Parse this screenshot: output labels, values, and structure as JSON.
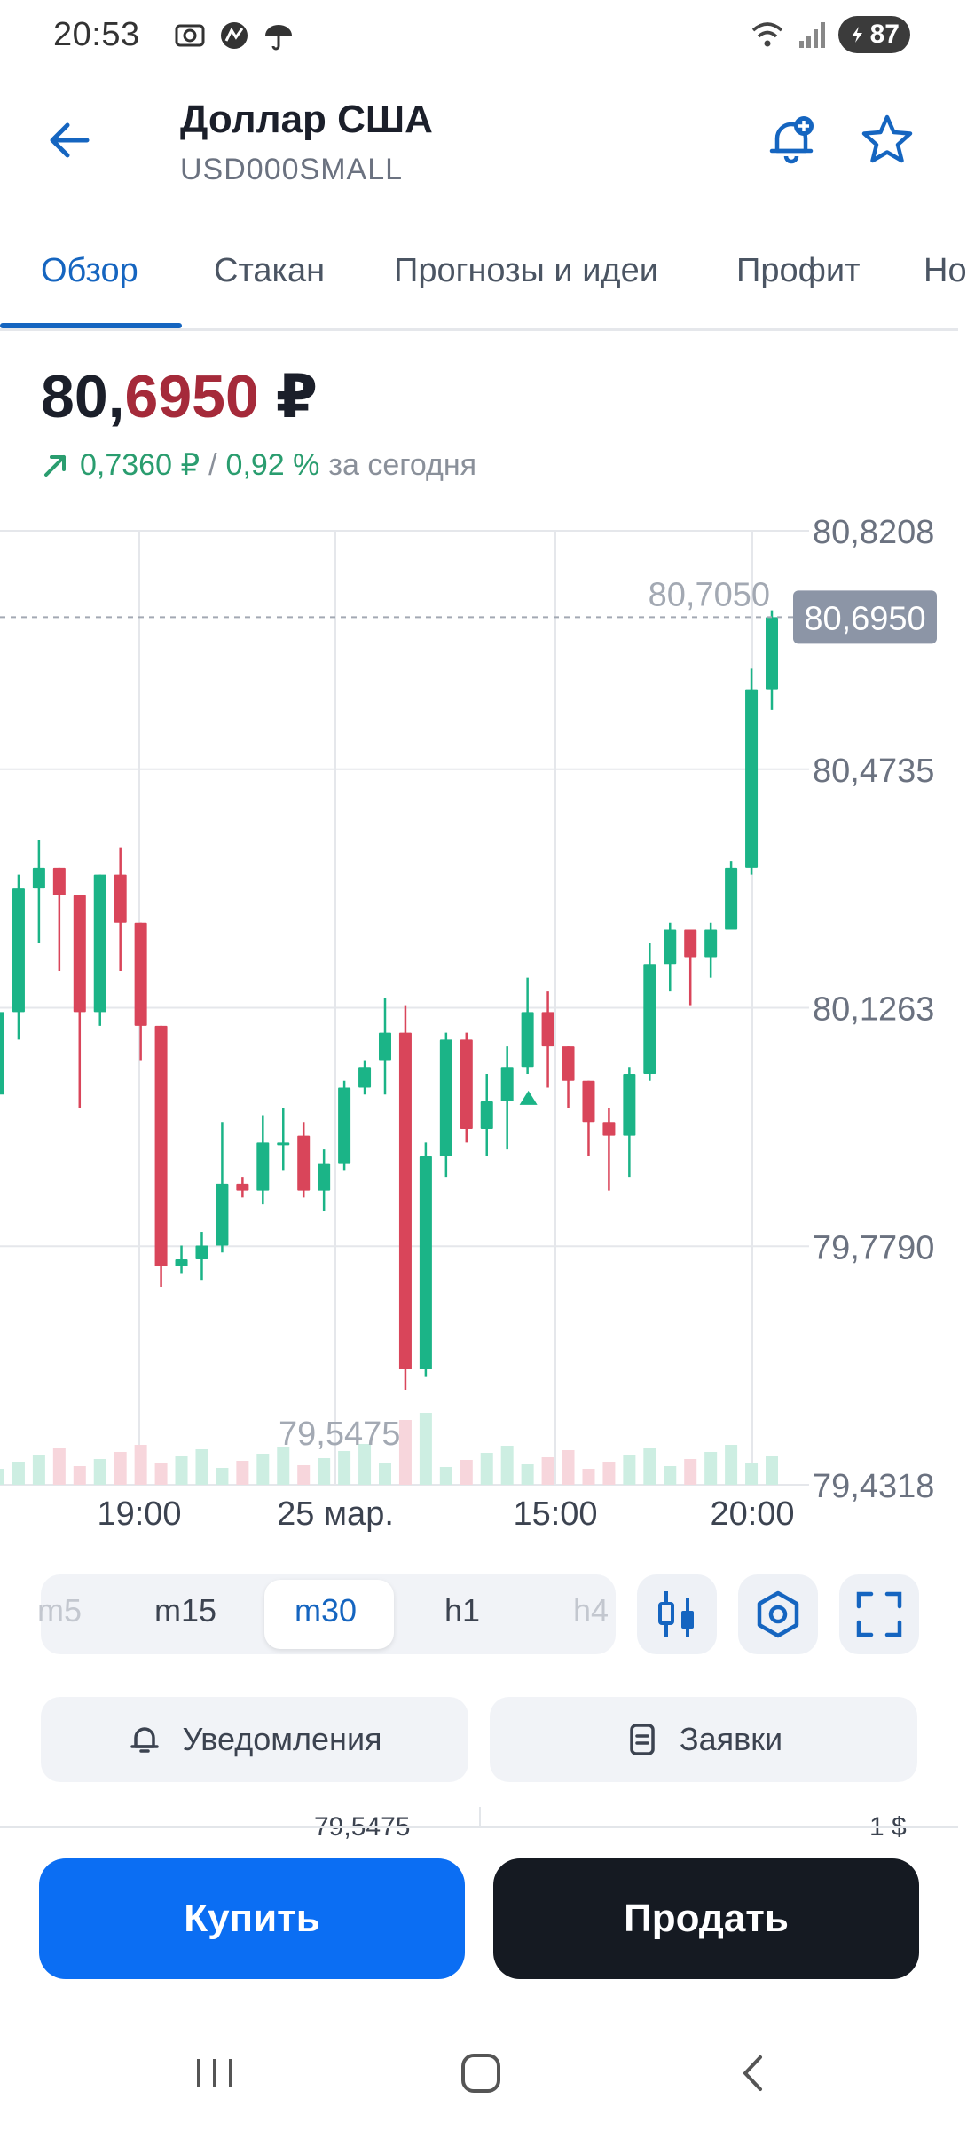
{
  "status": {
    "time": "20:53",
    "battery": "87"
  },
  "header": {
    "title": "Доллар США",
    "subtitle": "USD000SMALL"
  },
  "tabs": [
    {
      "label": "Обзор",
      "active": true
    },
    {
      "label": "Стакан",
      "active": false
    },
    {
      "label": "Прогнозы и идеи",
      "active": false
    },
    {
      "label": "Профит",
      "active": false
    },
    {
      "label": "Но",
      "active": false
    }
  ],
  "price": {
    "int_part": "80,",
    "frac_part": "6950",
    "currency": "₽",
    "change_abs": "0,7360 ₽",
    "separator": "/",
    "change_pct": "0,92 %",
    "period": "за сегодня"
  },
  "chart_data": {
    "type": "candlestick",
    "y_ticks": [
      "80,8208",
      "80,4735",
      "80,1263",
      "79,7790",
      "79,4318"
    ],
    "x_ticks": [
      "19:00",
      "25 мар.",
      "15:00",
      "20:00"
    ],
    "current_price_label": "80,6950",
    "max_label": "80,7050",
    "min_label": "79,5475",
    "ylim": [
      79.4318,
      80.8208
    ],
    "colors": {
      "up": "#1bb487",
      "down": "#d9455a",
      "grid": "#e5e7eb",
      "axis_text": "#6b7280"
    },
    "candles": [
      {
        "o": 80.0,
        "h": 80.14,
        "l": 79.98,
        "c": 80.12
      },
      {
        "o": 80.12,
        "h": 80.32,
        "l": 80.08,
        "c": 80.3
      },
      {
        "o": 80.3,
        "h": 80.37,
        "l": 80.22,
        "c": 80.33
      },
      {
        "o": 80.33,
        "h": 80.33,
        "l": 80.18,
        "c": 80.29
      },
      {
        "o": 80.29,
        "h": 80.29,
        "l": 79.98,
        "c": 80.12
      },
      {
        "o": 80.12,
        "h": 80.32,
        "l": 80.1,
        "c": 80.32
      },
      {
        "o": 80.32,
        "h": 80.36,
        "l": 80.18,
        "c": 80.25
      },
      {
        "o": 80.25,
        "h": 80.25,
        "l": 80.05,
        "c": 80.1
      },
      {
        "o": 80.1,
        "h": 80.1,
        "l": 79.72,
        "c": 79.75
      },
      {
        "o": 79.75,
        "h": 79.78,
        "l": 79.74,
        "c": 79.76
      },
      {
        "o": 79.76,
        "h": 79.8,
        "l": 79.73,
        "c": 79.78
      },
      {
        "o": 79.78,
        "h": 79.96,
        "l": 79.77,
        "c": 79.87
      },
      {
        "o": 79.87,
        "h": 79.88,
        "l": 79.85,
        "c": 79.86
      },
      {
        "o": 79.86,
        "h": 79.97,
        "l": 79.84,
        "c": 79.93
      },
      {
        "o": 79.93,
        "h": 79.98,
        "l": 79.89,
        "c": 79.93
      },
      {
        "o": 79.94,
        "h": 79.96,
        "l": 79.85,
        "c": 79.86
      },
      {
        "o": 79.86,
        "h": 79.92,
        "l": 79.83,
        "c": 79.9
      },
      {
        "o": 79.9,
        "h": 80.02,
        "l": 79.89,
        "c": 80.01
      },
      {
        "o": 80.01,
        "h": 80.05,
        "l": 80.0,
        "c": 80.04
      },
      {
        "o": 80.05,
        "h": 80.14,
        "l": 80.0,
        "c": 80.09
      },
      {
        "o": 80.09,
        "h": 80.13,
        "l": 79.57,
        "c": 79.6
      },
      {
        "o": 79.6,
        "h": 79.93,
        "l": 79.59,
        "c": 79.91
      },
      {
        "o": 79.91,
        "h": 80.09,
        "l": 79.88,
        "c": 80.08
      },
      {
        "o": 80.08,
        "h": 80.09,
        "l": 79.93,
        "c": 79.95
      },
      {
        "o": 79.95,
        "h": 80.03,
        "l": 79.91,
        "c": 79.99
      },
      {
        "o": 79.99,
        "h": 80.07,
        "l": 79.92,
        "c": 80.04
      },
      {
        "o": 80.04,
        "h": 80.17,
        "l": 80.03,
        "c": 80.12
      },
      {
        "o": 80.12,
        "h": 80.15,
        "l": 80.01,
        "c": 80.07
      },
      {
        "o": 80.07,
        "h": 80.07,
        "l": 79.98,
        "c": 80.02
      },
      {
        "o": 80.02,
        "h": 80.02,
        "l": 79.91,
        "c": 79.96
      },
      {
        "o": 79.96,
        "h": 79.98,
        "l": 79.86,
        "c": 79.94
      },
      {
        "o": 79.94,
        "h": 80.04,
        "l": 79.88,
        "c": 80.03
      },
      {
        "o": 80.03,
        "h": 80.22,
        "l": 80.02,
        "c": 80.19
      },
      {
        "o": 80.19,
        "h": 80.25,
        "l": 80.15,
        "c": 80.24
      },
      {
        "o": 80.24,
        "h": 80.24,
        "l": 80.13,
        "c": 80.2
      },
      {
        "o": 80.2,
        "h": 80.25,
        "l": 80.17,
        "c": 80.24
      },
      {
        "o": 80.24,
        "h": 80.34,
        "l": 80.24,
        "c": 80.33
      },
      {
        "o": 80.33,
        "h": 80.62,
        "l": 80.32,
        "c": 80.59
      },
      {
        "o": 80.59,
        "h": 80.705,
        "l": 80.56,
        "c": 80.695
      }
    ]
  },
  "timeframes": [
    {
      "label": "m5",
      "active": false
    },
    {
      "label": "m15",
      "active": false
    },
    {
      "label": "m30",
      "active": true
    },
    {
      "label": "h1",
      "active": false
    },
    {
      "label": "h4",
      "active": false
    }
  ],
  "actions": {
    "notifications": "Уведомления",
    "orders": "Заявки"
  },
  "stub": {
    "left": "79,5475",
    "right": "1 $"
  },
  "trade": {
    "buy": "Купить",
    "sell": "Продать"
  },
  "icons": [
    "camera-icon",
    "network-icon",
    "umbrella-icon",
    "wifi-icon",
    "signal-icon",
    "battery-icon",
    "back-arrow-icon",
    "bell-plus-icon",
    "star-icon",
    "candle-type-icon",
    "settings-hex-icon",
    "fullscreen-icon",
    "bell-icon",
    "document-icon",
    "recents-icon",
    "home-icon",
    "nav-back-icon"
  ]
}
